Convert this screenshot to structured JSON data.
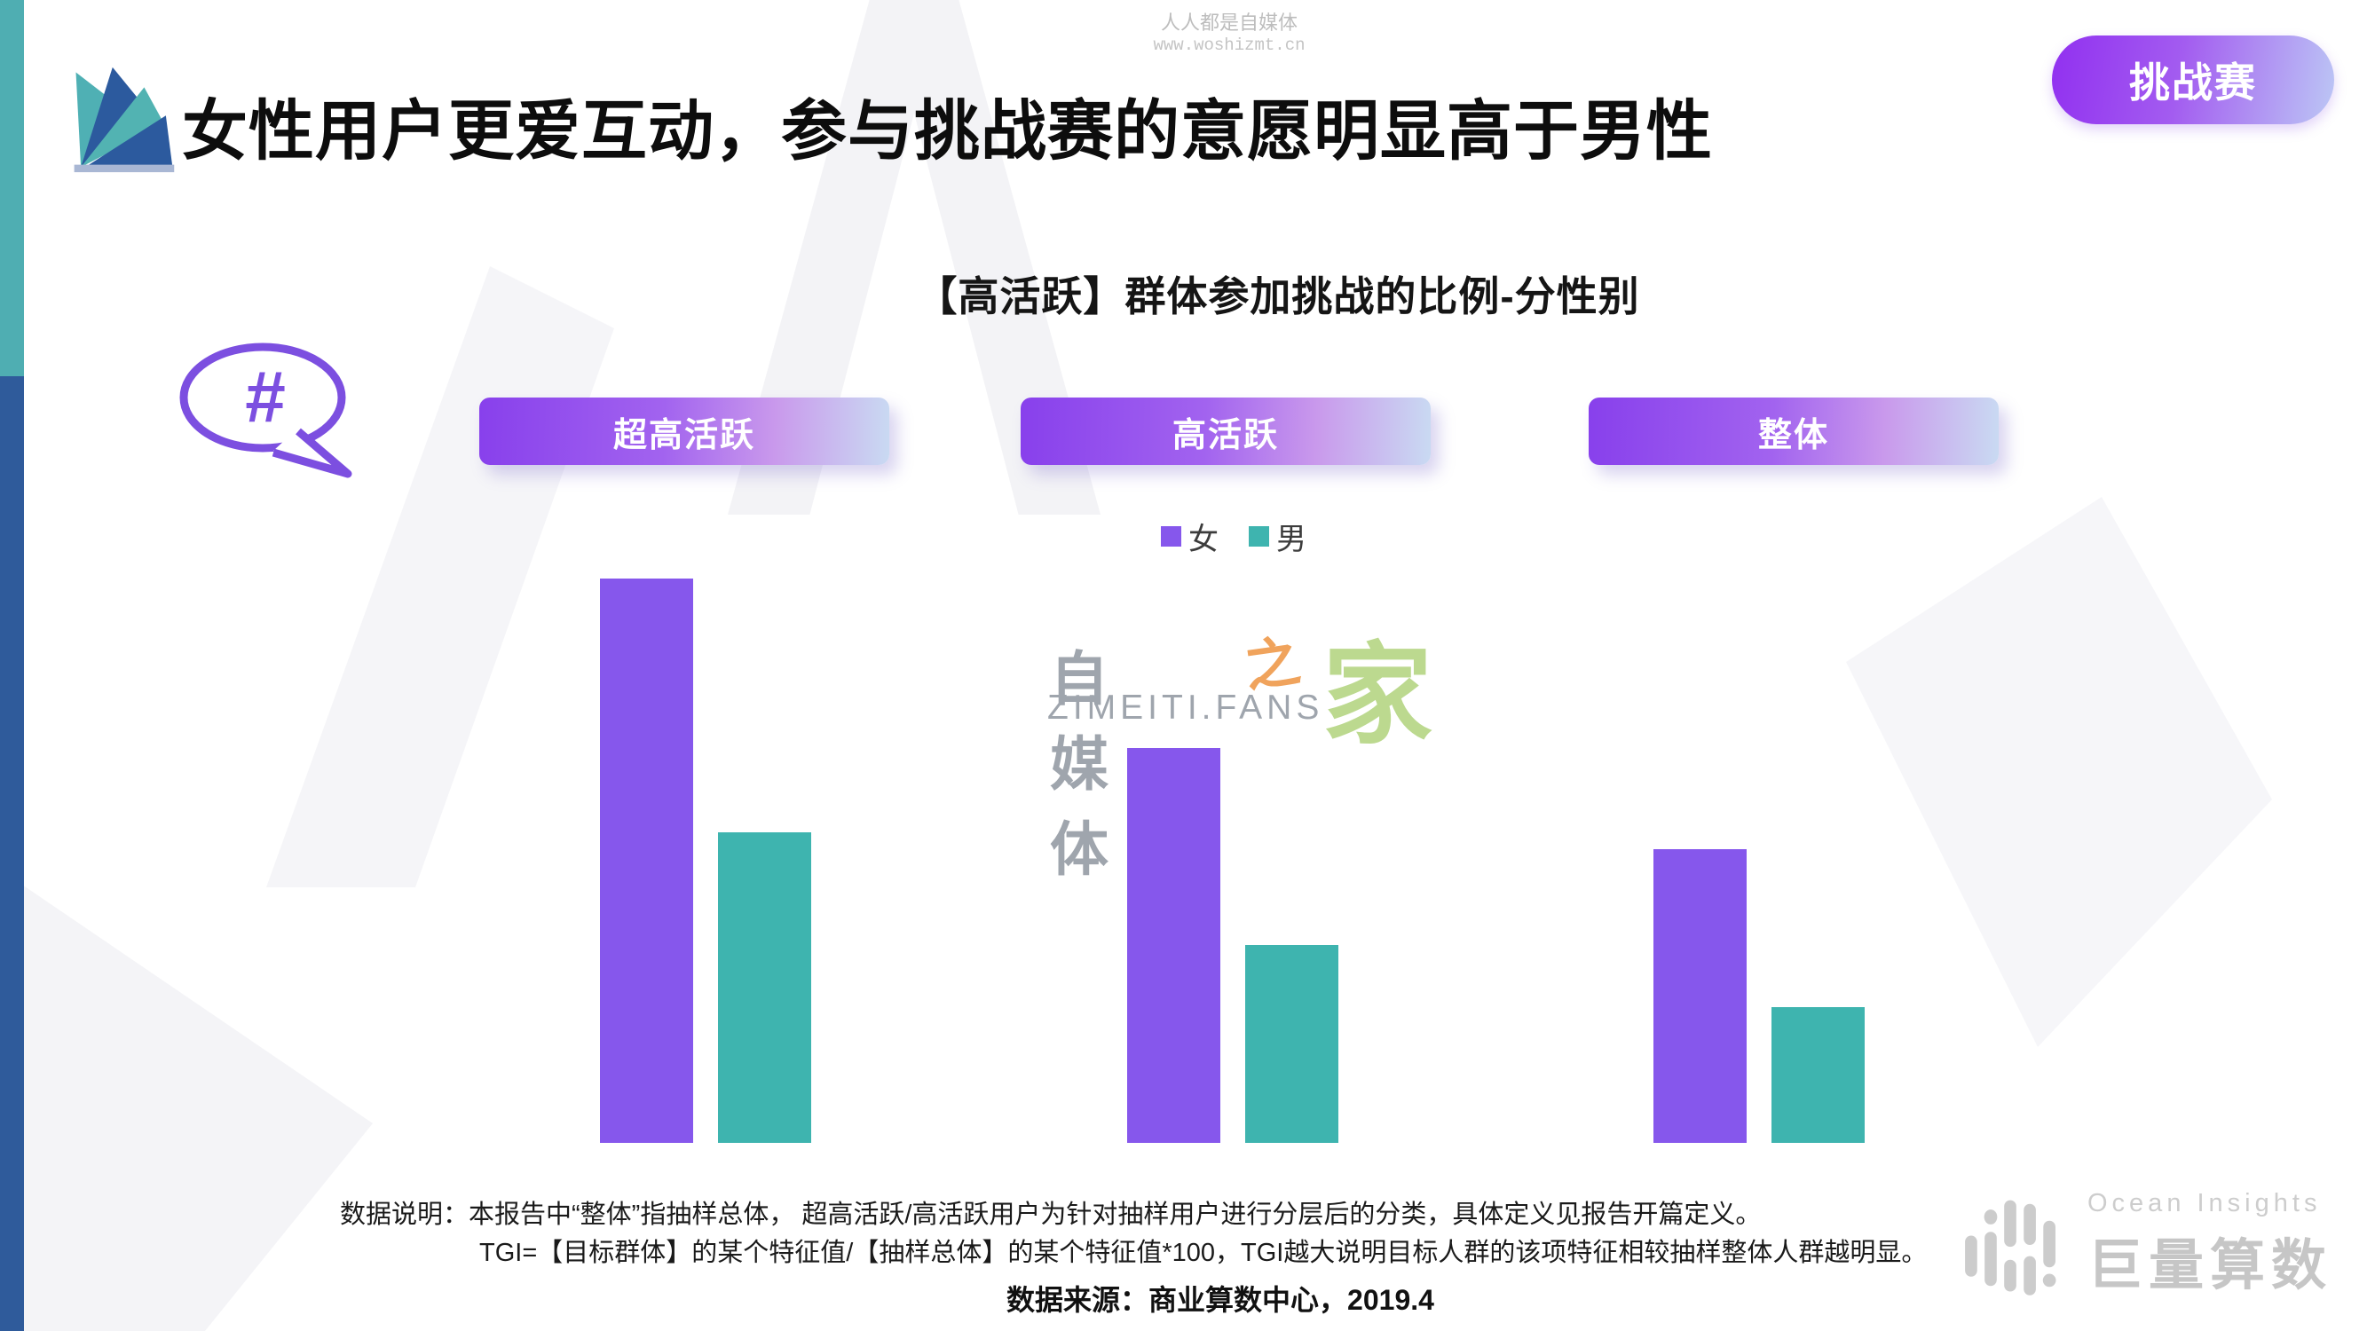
{
  "page": {
    "title": "女性用户更爱互动，参与挑战赛的意愿明显高于男性",
    "corner_badge": "挑战赛",
    "bubble_symbol": "#"
  },
  "watermark_top": {
    "line1": "人人都是自媒体",
    "line2": "www.woshizmt.cn"
  },
  "watermark_center": {
    "cn_part1": "自媒体",
    "cn_part2": "之",
    "cn_part3": "家",
    "en": "ZIMEITI.FANS"
  },
  "chart_data": {
    "type": "bar",
    "title": "【高活跃】群体参加挑战的比例-分性别",
    "categories": [
      "超高活跃",
      "高活跃",
      "整体"
    ],
    "series": [
      {
        "name": "女",
        "color": "#8657EC",
        "values": [
          100,
          70,
          52
        ]
      },
      {
        "name": "男",
        "color": "#3EB4AF",
        "values": [
          55,
          35,
          24
        ]
      }
    ],
    "xlabel": "",
    "ylabel": "",
    "axis_ticks_visible": false,
    "value_labels_visible": false,
    "values_unit": "relative bar height, no numeric axis shown (女@超高活跃 normalized to 100)",
    "legend_position": "top-center",
    "grid": false
  },
  "notes": {
    "line1": "数据说明：本报告中“整体”指抽样总体， 超高活跃/高活跃用户为针对抽样用户进行分层后的分类，具体定义见报告开篇定义。",
    "line2": "TGI=【目标群体】的某个特征值/【抽样总体】的某个特征值*100，TGI越大说明目标人群的该项特征相较抽样整体人群越明显。",
    "source": "数据来源：商业算数中心，2019.4"
  },
  "footer_logo": {
    "brand_en": "Ocean Insights",
    "brand_cn": "巨量算数"
  },
  "colors": {
    "female_bar": "#8657EC",
    "male_bar": "#3EB4AF",
    "pill_gradient_start": "#8840EC",
    "pill_gradient_end": "#C9DAF2",
    "badge_gradient_start": "#9130F0",
    "badge_gradient_end": "#BCC7F5",
    "stripe_teal": "#4FAEB2",
    "stripe_blue": "#2F5B9B",
    "bubble_outline": "#7C4FE0"
  }
}
